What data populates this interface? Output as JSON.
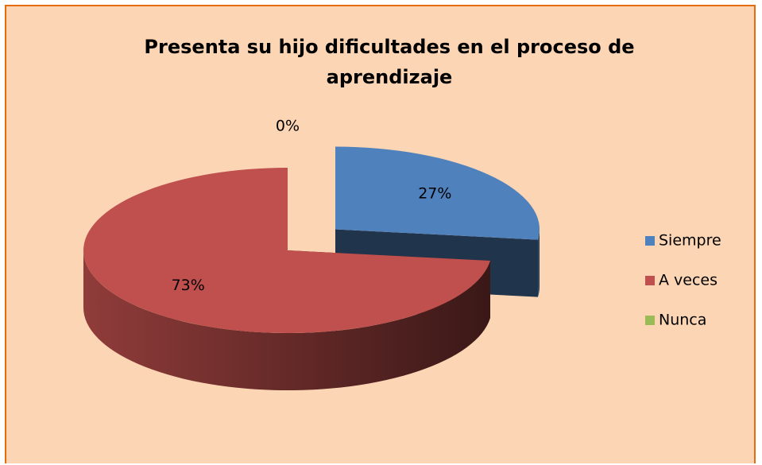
{
  "chart_data": {
    "type": "pie",
    "title": "Presenta su hijo dificultades en el proceso de aprendizaje",
    "categories": [
      "Siempre",
      "A veces",
      "Nunca"
    ],
    "values": [
      27,
      73,
      0
    ],
    "value_labels": [
      "27%",
      "73%",
      "0%"
    ],
    "colors": [
      "#4f81bd",
      "#c0504d",
      "#9bbb59"
    ],
    "legend": "right"
  }
}
